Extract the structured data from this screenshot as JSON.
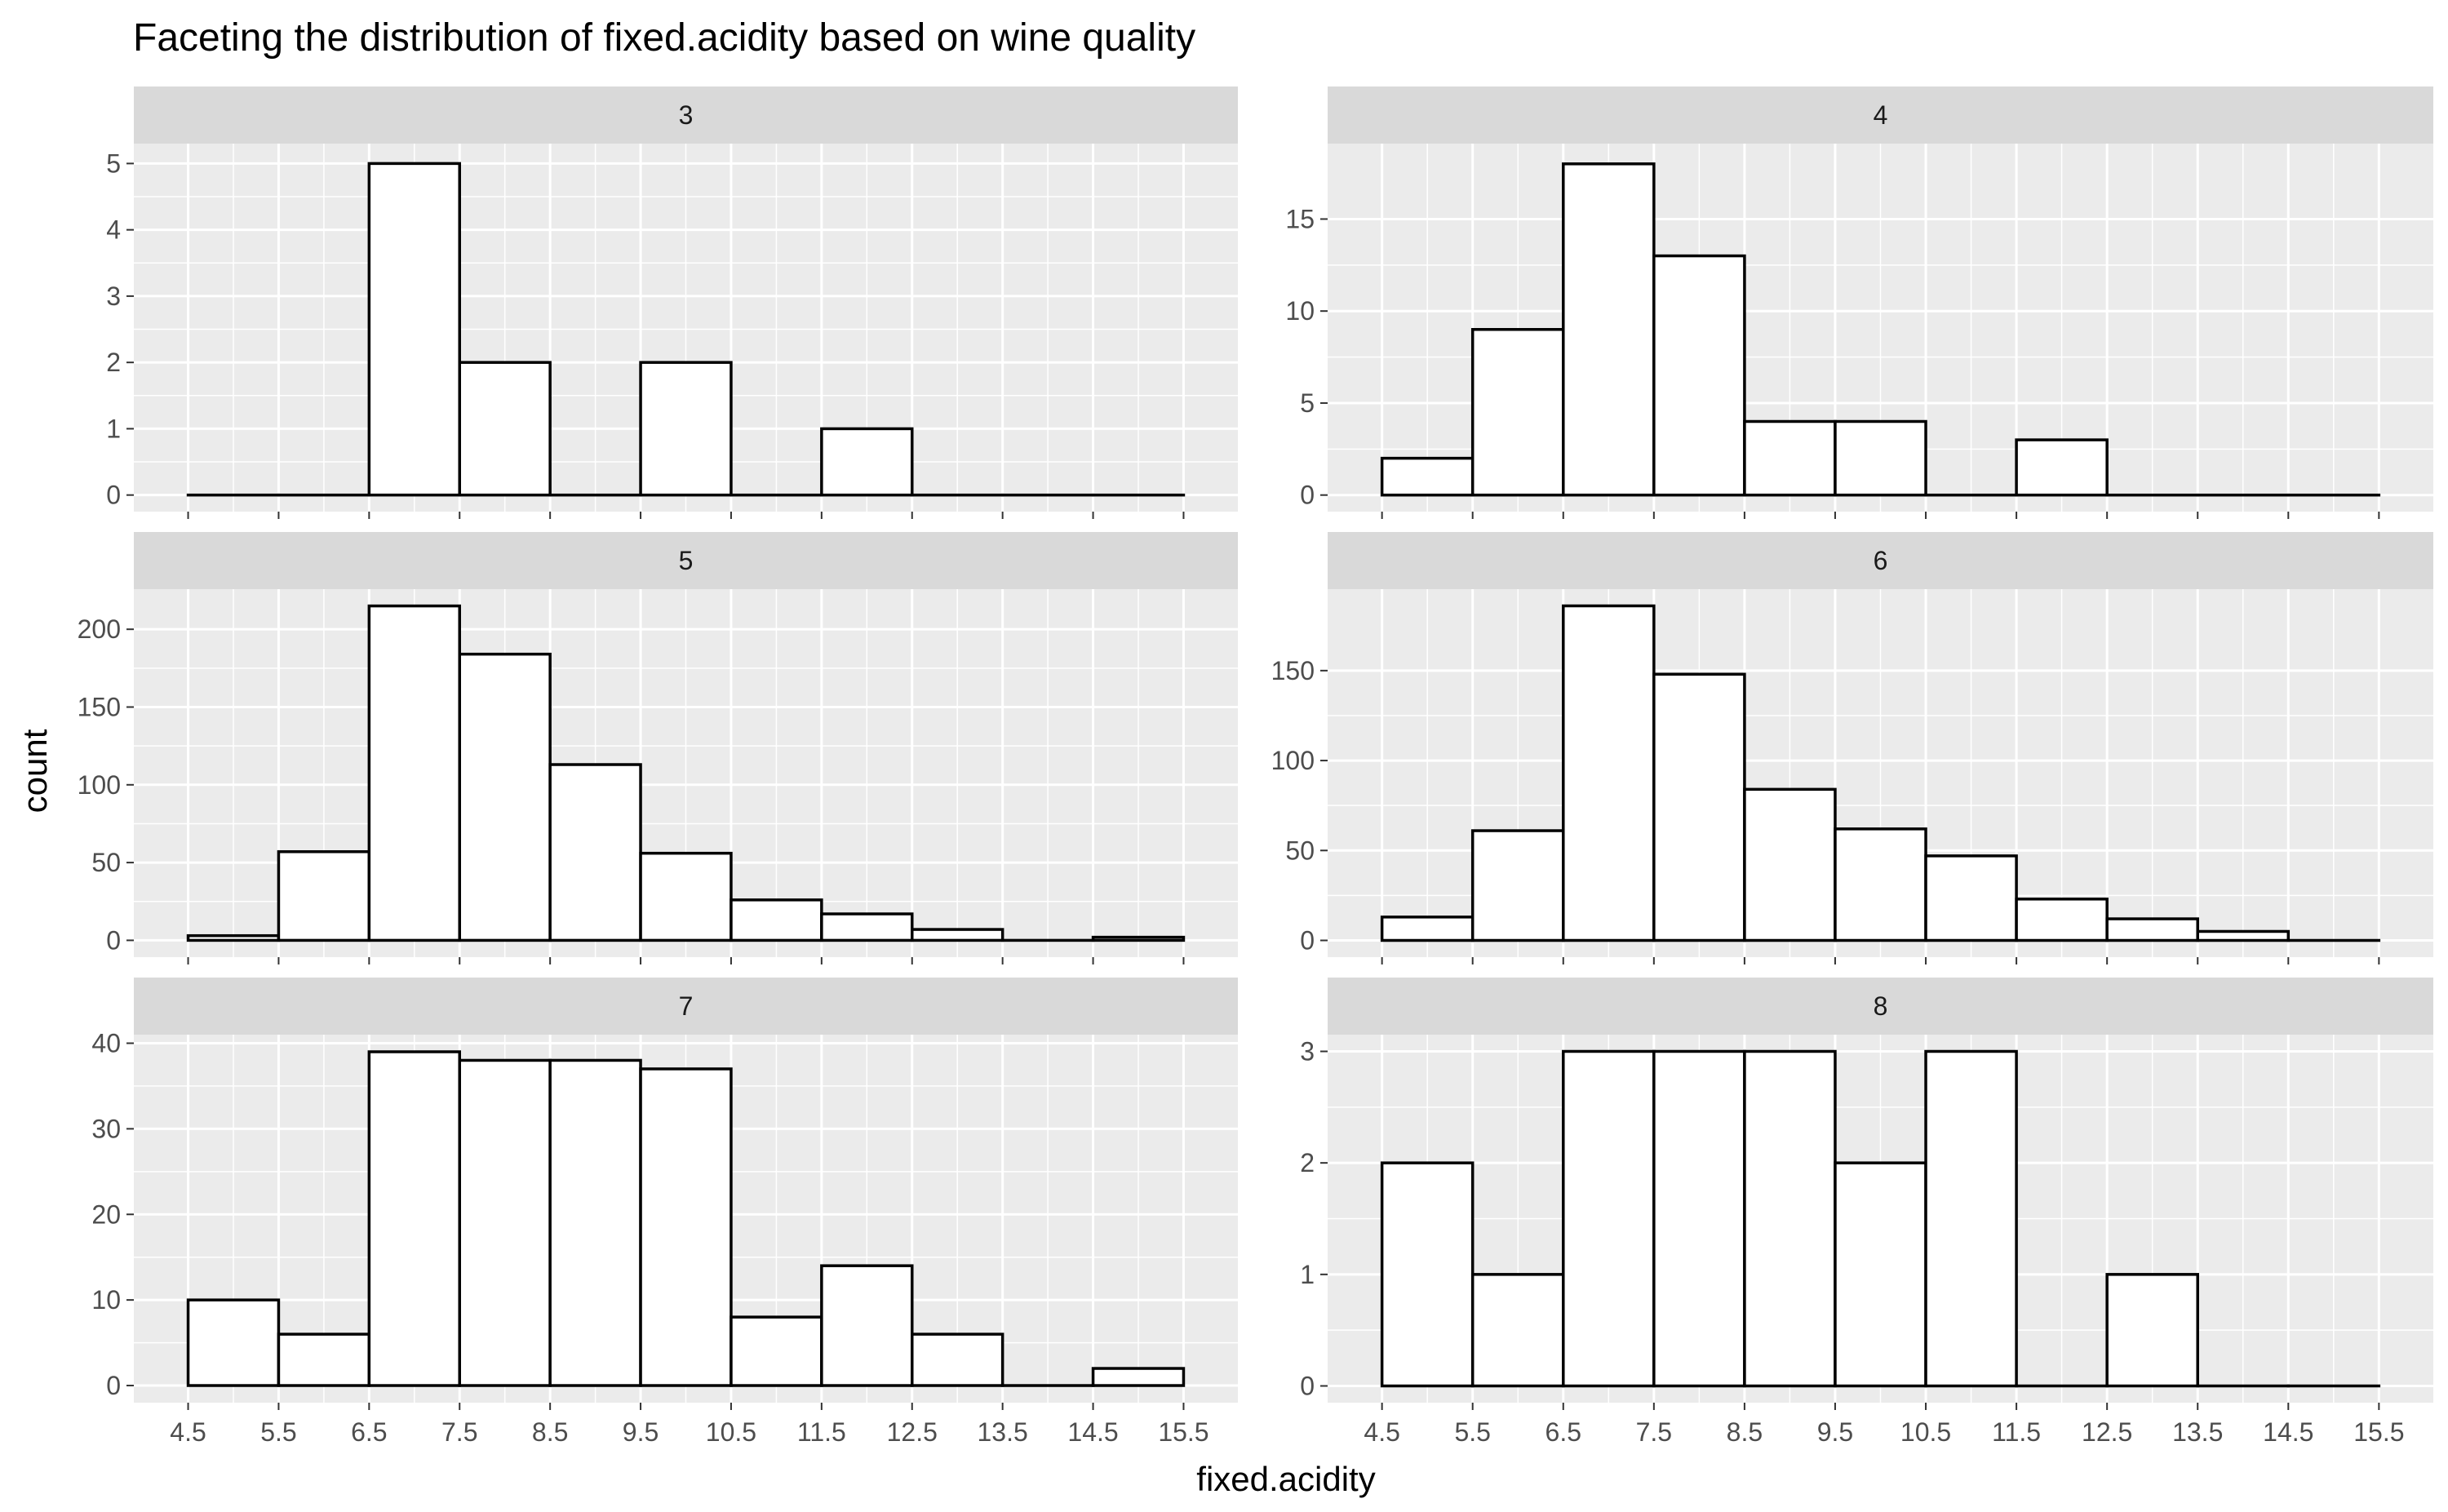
{
  "chart_data": {
    "type": "bar",
    "title": "Faceting the distribution of fixed.acidity based on wine quality",
    "xlabel": "fixed.acidity",
    "ylabel": "count",
    "x_ticks": [
      "4.5",
      "5.5",
      "6.5",
      "7.5",
      "8.5",
      "9.5",
      "10.5",
      "11.5",
      "12.5",
      "13.5",
      "14.5",
      "15.5"
    ],
    "bin_edges": [
      4.5,
      5.5,
      6.5,
      7.5,
      8.5,
      9.5,
      10.5,
      11.5,
      12.5,
      13.5,
      14.5,
      15.5
    ],
    "xlim": [
      3.9,
      16.1
    ],
    "grid": true,
    "bar_fill": "#ffffff",
    "bar_outline": "#000000",
    "panel_background": "#ebebeb",
    "strip_background": "#d9d9d9",
    "facets": [
      {
        "label": "3",
        "counts": [
          0,
          0,
          5,
          2,
          0,
          2,
          0,
          1,
          0,
          0,
          0
        ],
        "y_ticks": [
          0,
          1,
          2,
          3,
          4,
          5
        ],
        "ylim": [
          -0.25,
          5.3
        ]
      },
      {
        "label": "4",
        "counts": [
          2,
          9,
          18,
          13,
          4,
          4,
          0,
          3,
          0,
          0,
          0
        ],
        "y_ticks": [
          0,
          5,
          10,
          15
        ],
        "ylim": [
          -0.9,
          19.1
        ]
      },
      {
        "label": "5",
        "counts": [
          3,
          57,
          215,
          184,
          113,
          56,
          26,
          17,
          7,
          0,
          2
        ],
        "y_ticks": [
          0,
          50,
          100,
          150,
          200
        ],
        "ylim": [
          -10.8,
          225.8
        ]
      },
      {
        "label": "6",
        "counts": [
          13,
          61,
          186,
          148,
          84,
          62,
          47,
          23,
          12,
          5,
          0
        ],
        "y_ticks": [
          0,
          50,
          100,
          150
        ],
        "ylim": [
          -9.3,
          195.3
        ]
      },
      {
        "label": "7",
        "counts": [
          10,
          6,
          39,
          38,
          38,
          37,
          8,
          14,
          6,
          0,
          2
        ],
        "y_ticks": [
          0,
          10,
          20,
          30,
          40
        ],
        "ylim": [
          -2.0,
          41.0
        ]
      },
      {
        "label": "8",
        "counts": [
          2,
          1,
          3,
          3,
          3,
          2,
          3,
          0,
          1,
          0,
          0
        ],
        "y_ticks": [
          0,
          1,
          2,
          3
        ],
        "ylim": [
          -0.15,
          3.15
        ]
      }
    ]
  }
}
